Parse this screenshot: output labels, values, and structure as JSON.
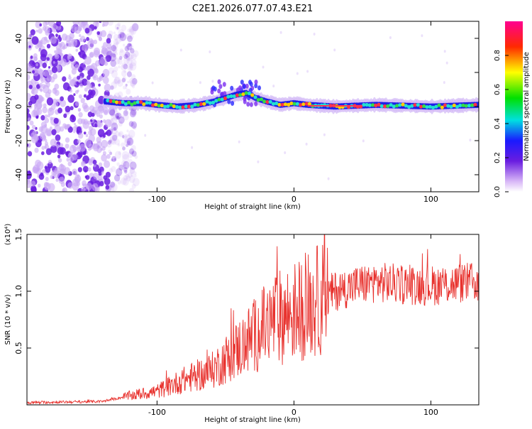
{
  "title": "C2E1.2026.077.07.43.E21",
  "chart_data": [
    {
      "type": "heatmap",
      "name": "spectrogram",
      "xlabel": "Height of straight line (km)",
      "ylabel": "Frequency (Hz)",
      "xlim": [
        -195,
        135
      ],
      "ylim": [
        -50,
        50
      ],
      "xticks": [
        -100,
        0,
        100
      ],
      "yticks": [
        -40,
        -20,
        0,
        20,
        40
      ],
      "colorbar": {
        "label": "Normalized spectral amplitude",
        "range": [
          0,
          1
        ],
        "ticks": [
          "0.0",
          "0.2",
          "0.4",
          "0.6",
          "0.8"
        ]
      },
      "trace": [
        {
          "x": -138,
          "y": 3
        },
        {
          "x": -125,
          "y": 2
        },
        {
          "x": -110,
          "y": 2
        },
        {
          "x": -100,
          "y": 1
        },
        {
          "x": -85,
          "y": 0
        },
        {
          "x": -70,
          "y": 1
        },
        {
          "x": -58,
          "y": 3
        },
        {
          "x": -50,
          "y": 5
        },
        {
          "x": -42,
          "y": 7
        },
        {
          "x": -35,
          "y": 8
        },
        {
          "x": -28,
          "y": 5
        },
        {
          "x": -20,
          "y": 3
        },
        {
          "x": -10,
          "y": 1
        },
        {
          "x": 0,
          "y": 2
        },
        {
          "x": 10,
          "y": 1
        },
        {
          "x": 30,
          "y": 0
        },
        {
          "x": 60,
          "y": 1
        },
        {
          "x": 100,
          "y": 0
        },
        {
          "x": 135,
          "y": 1
        }
      ]
    },
    {
      "type": "line",
      "name": "snr",
      "xlabel": "Height of straight line (km)",
      "ylabel": "SNR (10 * v/v)",
      "scale_label": "(x10⁴)",
      "xlim": [
        -195,
        135
      ],
      "ylim": [
        0,
        1.5
      ],
      "xticks": [
        -100,
        0,
        100
      ],
      "yticks": [
        "0.5",
        "1.0",
        "1.5"
      ],
      "color": "#e8322e",
      "envelope": [
        {
          "x": -195,
          "y": 0.02
        },
        {
          "x": -140,
          "y": 0.03
        },
        {
          "x": -120,
          "y": 0.08
        },
        {
          "x": -100,
          "y": 0.12
        },
        {
          "x": -80,
          "y": 0.22
        },
        {
          "x": -60,
          "y": 0.3
        },
        {
          "x": -45,
          "y": 0.45
        },
        {
          "x": -30,
          "y": 0.6
        },
        {
          "x": -15,
          "y": 0.75
        },
        {
          "x": 0,
          "y": 0.82
        },
        {
          "x": 15,
          "y": 0.9
        },
        {
          "x": 30,
          "y": 1.0
        },
        {
          "x": 45,
          "y": 1.05
        },
        {
          "x": 60,
          "y": 1.08
        },
        {
          "x": 80,
          "y": 1.06
        },
        {
          "x": 100,
          "y": 1.05
        },
        {
          "x": 120,
          "y": 1.07
        },
        {
          "x": 135,
          "y": 1.08
        }
      ]
    }
  ]
}
